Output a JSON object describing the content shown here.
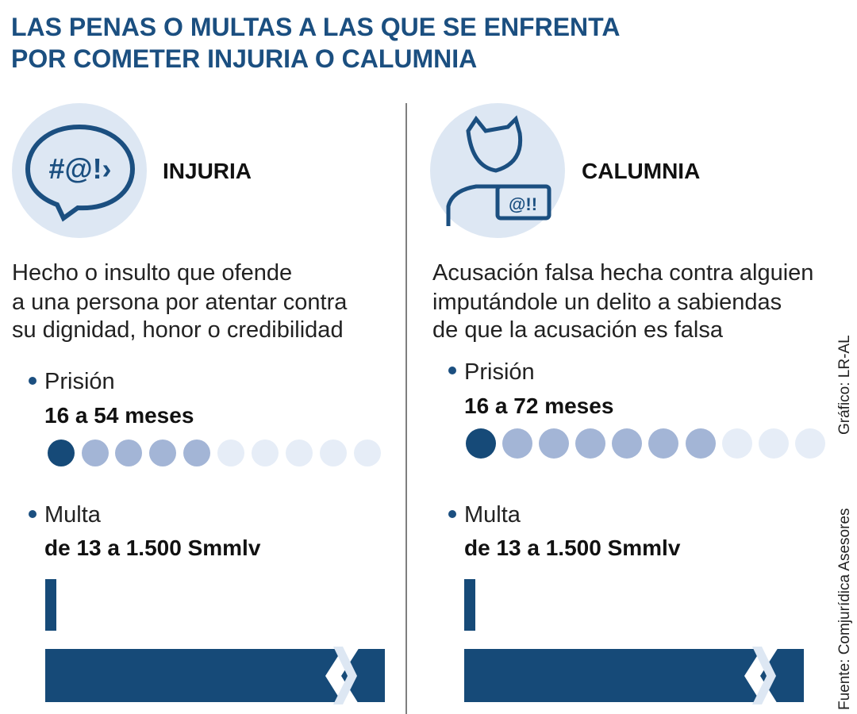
{
  "header": {
    "title_lines": [
      "LAS PENAS O MULTAS A LAS QUE SE ENFRENTA",
      "POR COMETER INJURIA O CALUMNIA"
    ]
  },
  "panels": [
    {
      "icon_text": "#@!›",
      "label": "INJURIA",
      "description": [
        "Hecho o insulto que ofende",
        "a una persona por atentar contra",
        "su dignidad, honor o credibilidad"
      ],
      "prison_label": "Prisión",
      "prison_range": "16 a 54 meses",
      "fine_label": "Multa",
      "fine_range": "de 13 a 1.500 Smmlv"
    },
    {
      "icon_text": "@!!",
      "label": "CALUMNIA",
      "description": [
        "Acusación falsa hecha contra alguien",
        "imputándole un delito a sabiendas",
        "de que la acusación es falsa"
      ],
      "prison_label": "Prisión",
      "prison_range": "16 a 72 meses",
      "fine_label": "Multa",
      "fine_range": "de 13 a 1.500 Smmlv"
    }
  ],
  "credits": {
    "graphic": "Gráfico: LR-AL",
    "source": "Fuente: Comjurídica Asesores"
  }
}
